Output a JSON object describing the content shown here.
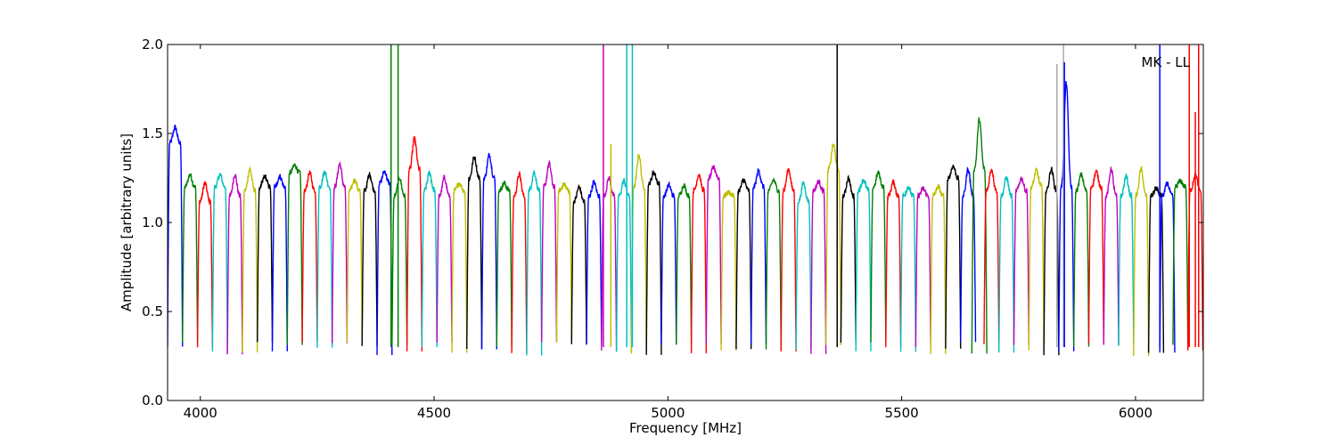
{
  "chart_data": {
    "type": "line",
    "xlabel": "Frequency [MHz]",
    "ylabel": "Amplitude [arbitrary units]",
    "annotation": "MK - LL",
    "xlim": [
      3930,
      6145
    ],
    "ylim": [
      0,
      2.0
    ],
    "x_ticks": [
      4000,
      4500,
      5000,
      5500,
      6000
    ],
    "y_ticks": [
      0.0,
      0.5,
      1.0,
      1.5,
      2.0
    ],
    "x_tick_labels": [
      "4000",
      "4500",
      "5000",
      "5500",
      "6000"
    ],
    "y_tick_labels": [
      "0.0",
      "0.5",
      "1.0",
      "1.5",
      "2.0"
    ],
    "grid": false,
    "colors": [
      "#0000ff",
      "#008000",
      "#ff0000",
      "#00bfbf",
      "#bf00bf",
      "#bfbf00",
      "#000000"
    ],
    "band_width_mhz": 32,
    "bands": [
      {
        "start": 3930,
        "color": "#0000ff",
        "level": 1.45,
        "peak": 1.55
      },
      {
        "start": 3962,
        "color": "#008000",
        "level": 1.2,
        "peak": 1.27
      },
      {
        "start": 3994,
        "color": "#ff0000",
        "level": 1.12,
        "peak": 1.24
      },
      {
        "start": 4026,
        "color": "#00bfbf",
        "level": 1.2,
        "peak": 1.27
      },
      {
        "start": 4058,
        "color": "#bf00bf",
        "level": 1.15,
        "peak": 1.29
      },
      {
        "start": 4090,
        "color": "#bfbf00",
        "level": 1.18,
        "peak": 1.3
      },
      {
        "start": 4122,
        "color": "#000000",
        "level": 1.2,
        "peak": 1.27
      },
      {
        "start": 4154,
        "color": "#0000ff",
        "level": 1.2,
        "peak": 1.26
      },
      {
        "start": 4186,
        "color": "#008000",
        "level": 1.28,
        "peak": 1.33
      },
      {
        "start": 4218,
        "color": "#ff0000",
        "level": 1.18,
        "peak": 1.28
      },
      {
        "start": 4250,
        "color": "#00bfbf",
        "level": 1.2,
        "peak": 1.3
      },
      {
        "start": 4282,
        "color": "#bf00bf",
        "level": 1.2,
        "peak": 1.33
      },
      {
        "start": 4314,
        "color": "#bfbf00",
        "level": 1.18,
        "peak": 1.25
      },
      {
        "start": 4346,
        "color": "#000000",
        "level": 1.18,
        "peak": 1.27
      },
      {
        "start": 4378,
        "color": "#0000ff",
        "level": 1.22,
        "peak": 1.3
      },
      {
        "start": 4410,
        "color": "#008000",
        "level": 1.15,
        "peak": 1.25
      },
      {
        "start": 4442,
        "color": "#ff0000",
        "level": 1.3,
        "peak": 1.5
      },
      {
        "start": 4474,
        "color": "#00bfbf",
        "level": 1.18,
        "peak": 1.28
      },
      {
        "start": 4506,
        "color": "#bf00bf",
        "level": 1.15,
        "peak": 1.27
      },
      {
        "start": 4538,
        "color": "#bfbf00",
        "level": 1.18,
        "peak": 1.22
      },
      {
        "start": 4570,
        "color": "#000000",
        "level": 1.25,
        "peak": 1.39
      },
      {
        "start": 4602,
        "color": "#0000ff",
        "level": 1.25,
        "peak": 1.38
      },
      {
        "start": 4634,
        "color": "#008000",
        "level": 1.18,
        "peak": 1.23
      },
      {
        "start": 4666,
        "color": "#ff0000",
        "level": 1.15,
        "peak": 1.27
      },
      {
        "start": 4698,
        "color": "#00bfbf",
        "level": 1.18,
        "peak": 1.3
      },
      {
        "start": 4730,
        "color": "#bf00bf",
        "level": 1.2,
        "peak": 1.33
      },
      {
        "start": 4762,
        "color": "#bfbf00",
        "level": 1.18,
        "peak": 1.22
      },
      {
        "start": 4794,
        "color": "#000000",
        "level": 1.12,
        "peak": 1.2
      },
      {
        "start": 4826,
        "color": "#0000ff",
        "level": 1.15,
        "peak": 1.24
      },
      {
        "start": 4858,
        "color": "#bf00bf",
        "level": 1.15,
        "peak": 1.25
      },
      {
        "start": 4890,
        "color": "#00bfbf",
        "level": 1.15,
        "peak": 1.25
      },
      {
        "start": 4922,
        "color": "#bfbf00",
        "level": 1.2,
        "peak": 1.38
      },
      {
        "start": 4954,
        "color": "#000000",
        "level": 1.22,
        "peak": 1.29
      },
      {
        "start": 4986,
        "color": "#0000ff",
        "level": 1.15,
        "peak": 1.21
      },
      {
        "start": 5018,
        "color": "#008000",
        "level": 1.15,
        "peak": 1.22
      },
      {
        "start": 5050,
        "color": "#ff0000",
        "level": 1.18,
        "peak": 1.27
      },
      {
        "start": 5082,
        "color": "#bf00bf",
        "level": 1.25,
        "peak": 1.32
      },
      {
        "start": 5114,
        "color": "#bfbf00",
        "level": 1.15,
        "peak": 1.17
      },
      {
        "start": 5146,
        "color": "#000000",
        "level": 1.18,
        "peak": 1.25
      },
      {
        "start": 5178,
        "color": "#0000ff",
        "level": 1.2,
        "peak": 1.29
      },
      {
        "start": 5210,
        "color": "#008000",
        "level": 1.18,
        "peak": 1.25
      },
      {
        "start": 5242,
        "color": "#ff0000",
        "level": 1.18,
        "peak": 1.3
      },
      {
        "start": 5274,
        "color": "#00bfbf",
        "level": 1.12,
        "peak": 1.24
      },
      {
        "start": 5306,
        "color": "#bf00bf",
        "level": 1.18,
        "peak": 1.23
      },
      {
        "start": 5338,
        "color": "#bfbf00",
        "level": 1.3,
        "peak": 1.46
      },
      {
        "start": 5370,
        "color": "#000000",
        "level": 1.15,
        "peak": 1.25
      },
      {
        "start": 5402,
        "color": "#00bfbf",
        "level": 1.18,
        "peak": 1.25
      },
      {
        "start": 5434,
        "color": "#008000",
        "level": 1.2,
        "peak": 1.28
      },
      {
        "start": 5466,
        "color": "#ff0000",
        "level": 1.15,
        "peak": 1.24
      },
      {
        "start": 5498,
        "color": "#00bfbf",
        "level": 1.15,
        "peak": 1.2
      },
      {
        "start": 5530,
        "color": "#bf00bf",
        "level": 1.15,
        "peak": 1.2
      },
      {
        "start": 5562,
        "color": "#bfbf00",
        "level": 1.15,
        "peak": 1.2
      },
      {
        "start": 5594,
        "color": "#000000",
        "level": 1.25,
        "peak": 1.33
      },
      {
        "start": 5626,
        "color": "#0000ff",
        "level": 1.15,
        "peak": 1.3
      },
      {
        "start": 5650,
        "color": "#008000",
        "level": 1.3,
        "peak": 1.63
      },
      {
        "start": 5676,
        "color": "#ff0000",
        "level": 1.18,
        "peak": 1.3
      },
      {
        "start": 5708,
        "color": "#00bfbf",
        "level": 1.15,
        "peak": 1.27
      },
      {
        "start": 5740,
        "color": "#bf00bf",
        "level": 1.18,
        "peak": 1.25
      },
      {
        "start": 5772,
        "color": "#bfbf00",
        "level": 1.2,
        "peak": 1.31
      },
      {
        "start": 5804,
        "color": "#000000",
        "level": 1.18,
        "peak": 1.3
      },
      {
        "start": 5836,
        "color": "#0000ff",
        "level": 1.2,
        "peak": 1.89
      },
      {
        "start": 5868,
        "color": "#008000",
        "level": 1.18,
        "peak": 1.27
      },
      {
        "start": 5900,
        "color": "#ff0000",
        "level": 1.2,
        "peak": 1.3
      },
      {
        "start": 5932,
        "color": "#bf00bf",
        "level": 1.15,
        "peak": 1.3
      },
      {
        "start": 5964,
        "color": "#00bfbf",
        "level": 1.15,
        "peak": 1.28
      },
      {
        "start": 5996,
        "color": "#bfbf00",
        "level": 1.15,
        "peak": 1.3
      },
      {
        "start": 6028,
        "color": "#000000",
        "level": 1.15,
        "peak": 1.2
      },
      {
        "start": 6052,
        "color": "#0000ff",
        "level": 1.15,
        "peak": 1.22
      },
      {
        "start": 6080,
        "color": "#008000",
        "level": 1.2,
        "peak": 1.24
      },
      {
        "start": 6112,
        "color": "#ff0000",
        "level": 1.18,
        "peak": 1.27
      }
    ],
    "spikes": [
      {
        "x": 4408,
        "color": "#008000",
        "y": 2.0
      },
      {
        "x": 4423,
        "color": "#008000",
        "y": 2.0
      },
      {
        "x": 4862,
        "color": "#bf00bf",
        "y": 2.0
      },
      {
        "x": 4878,
        "color": "#bfbf00",
        "y": 1.44
      },
      {
        "x": 4912,
        "color": "#00bfbf",
        "y": 2.0
      },
      {
        "x": 4924,
        "color": "#00bfbf",
        "y": 2.0
      },
      {
        "x": 5362,
        "color": "#000000",
        "y": 2.0
      },
      {
        "x": 5832,
        "color": "#aaaaaa",
        "y": 1.89
      },
      {
        "x": 5846,
        "color": "#aaaaaa",
        "y": 2.0
      },
      {
        "x": 5848,
        "color": "#0000ff",
        "y": 1.9
      },
      {
        "x": 6052,
        "color": "#0000ff",
        "y": 2.0
      },
      {
        "x": 6115,
        "color": "#ff0000",
        "y": 2.0
      },
      {
        "x": 6128,
        "color": "#ff0000",
        "y": 1.62
      },
      {
        "x": 6135,
        "color": "#ff0000",
        "y": 2.0
      }
    ]
  }
}
